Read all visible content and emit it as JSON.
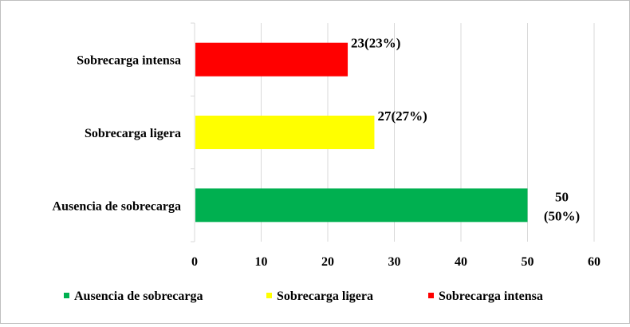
{
  "chart_data": {
    "type": "bar",
    "orientation": "horizontal",
    "categories": [
      "Ausencia de sobrecarga",
      "Sobrecarga ligera",
      "Sobrecarga intensa"
    ],
    "values": [
      50,
      27,
      23
    ],
    "data_labels": [
      [
        "50",
        "(50%)"
      ],
      [
        "27(27%)"
      ],
      [
        "23(23%)"
      ]
    ],
    "colors": [
      "#00b050",
      "#ffff00",
      "#ff0000"
    ],
    "xlim": [
      0,
      60
    ],
    "xticks": [
      "0",
      "10",
      "20",
      "30",
      "40",
      "50",
      "60"
    ],
    "grid": true,
    "legend": {
      "position": "bottom",
      "entries": [
        "Ausencia de sobrecarga",
        "Sobrecarga ligera",
        "Sobrecarga intensa"
      ]
    }
  }
}
